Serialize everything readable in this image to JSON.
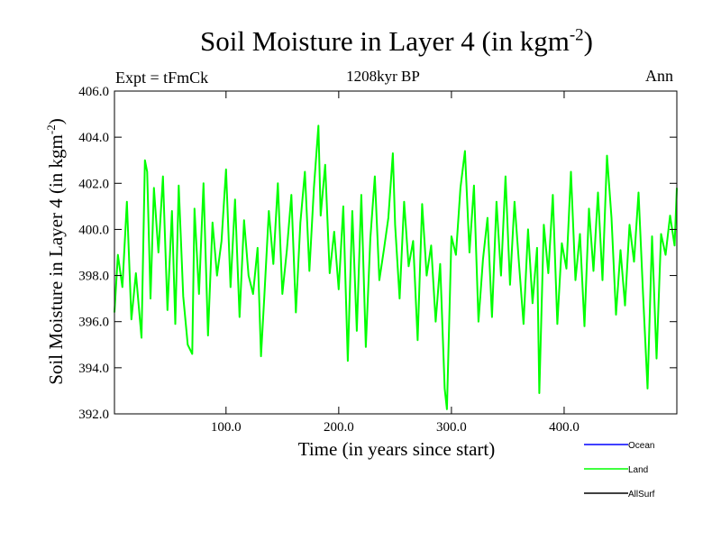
{
  "chart_data": {
    "type": "line",
    "title": {
      "main": "Soil Moisture in Layer 4 (in kgm",
      "sup": "-2",
      "close": ")"
    },
    "subtitle": "1208kyr BP",
    "left_label": "Expt = tFmCk",
    "right_label": "Ann",
    "xlabel": "Time (in years since start)",
    "ylabel": {
      "main": "Soil Moisture in Layer 4 (in kgm",
      "sup": "-2",
      "close": ")"
    },
    "xlim": [
      1,
      500
    ],
    "ylim": [
      392.0,
      406.0
    ],
    "x_ticks": [
      {
        "value": 100,
        "label": "100.0"
      },
      {
        "value": 200,
        "label": "200.0"
      },
      {
        "value": 300,
        "label": "300.0"
      },
      {
        "value": 400,
        "label": "400.0"
      }
    ],
    "y_ticks": [
      {
        "value": 392,
        "label": "392.0"
      },
      {
        "value": 394,
        "label": "394.0"
      },
      {
        "value": 396,
        "label": "396.0"
      },
      {
        "value": 398,
        "label": "398.0"
      },
      {
        "value": 400,
        "label": "400.0"
      },
      {
        "value": 402,
        "label": "402.0"
      },
      {
        "value": 404,
        "label": "404.0"
      },
      {
        "value": 406,
        "label": "406.0"
      }
    ],
    "legend": [
      {
        "name": "Ocean",
        "color": "#0000ff"
      },
      {
        "name": "Land",
        "color": "#00ff00"
      },
      {
        "name": "AllSurf",
        "color": "#000000"
      }
    ],
    "series": [
      {
        "name": "Land",
        "color": "#00ff00",
        "x": [
          1,
          4,
          8,
          12,
          16,
          20,
          25,
          28,
          30,
          33,
          36,
          40,
          44,
          48,
          52,
          55,
          58,
          62,
          66,
          70,
          72,
          76,
          80,
          84,
          88,
          92,
          96,
          100,
          104,
          108,
          112,
          116,
          120,
          124,
          128,
          131,
          134,
          138,
          142,
          146,
          150,
          154,
          158,
          162,
          166,
          170,
          174,
          178,
          182,
          184,
          188,
          192,
          196,
          200,
          204,
          208,
          212,
          216,
          220,
          224,
          228,
          232,
          236,
          240,
          244,
          248,
          250,
          254,
          258,
          262,
          266,
          270,
          274,
          278,
          282,
          286,
          290,
          294,
          296,
          300,
          304,
          308,
          312,
          316,
          320,
          324,
          328,
          332,
          336,
          340,
          344,
          348,
          352,
          356,
          360,
          364,
          368,
          372,
          376,
          378,
          382,
          386,
          390,
          394,
          398,
          402,
          406,
          410,
          414,
          418,
          422,
          426,
          430,
          434,
          438,
          442,
          446,
          450,
          454,
          458,
          462,
          466,
          470,
          474,
          478,
          482,
          486,
          490,
          494,
          498,
          500
        ],
        "values": [
          396.4,
          398.9,
          397.5,
          401.2,
          396.1,
          398.1,
          395.3,
          403.0,
          402.5,
          397.0,
          401.8,
          399.0,
          402.3,
          396.5,
          400.8,
          395.9,
          401.9,
          397.1,
          395.0,
          394.6,
          400.9,
          397.2,
          402.0,
          395.4,
          400.3,
          398.0,
          399.5,
          402.6,
          397.5,
          401.3,
          396.2,
          400.4,
          398.0,
          397.2,
          399.2,
          394.5,
          397.1,
          400.8,
          398.5,
          402.0,
          397.2,
          399.1,
          401.5,
          396.4,
          400.3,
          402.5,
          398.2,
          401.8,
          404.5,
          400.6,
          402.8,
          398.1,
          399.9,
          397.4,
          401.0,
          394.3,
          400.8,
          395.6,
          401.5,
          394.9,
          399.6,
          402.3,
          397.8,
          399.1,
          400.5,
          403.3,
          400.2,
          397.0,
          401.2,
          398.4,
          399.5,
          395.2,
          401.1,
          398.0,
          399.3,
          396.0,
          398.5,
          393.1,
          392.2,
          399.7,
          398.9,
          401.8,
          403.4,
          399.0,
          401.9,
          396.0,
          398.7,
          400.5,
          396.2,
          401.2,
          398.0,
          402.3,
          397.6,
          401.2,
          398.5,
          395.9,
          400.0,
          396.8,
          399.2,
          392.9,
          400.2,
          398.1,
          401.5,
          395.9,
          399.4,
          398.3,
          402.5,
          397.8,
          399.8,
          395.8,
          400.9,
          398.2,
          401.6,
          397.8,
          403.2,
          400.5,
          396.3,
          399.1,
          396.7,
          400.2,
          398.6,
          401.6,
          397.2,
          393.1,
          399.7,
          394.4,
          399.8,
          398.9,
          400.6,
          399.3,
          401.8
        ]
      }
    ]
  }
}
